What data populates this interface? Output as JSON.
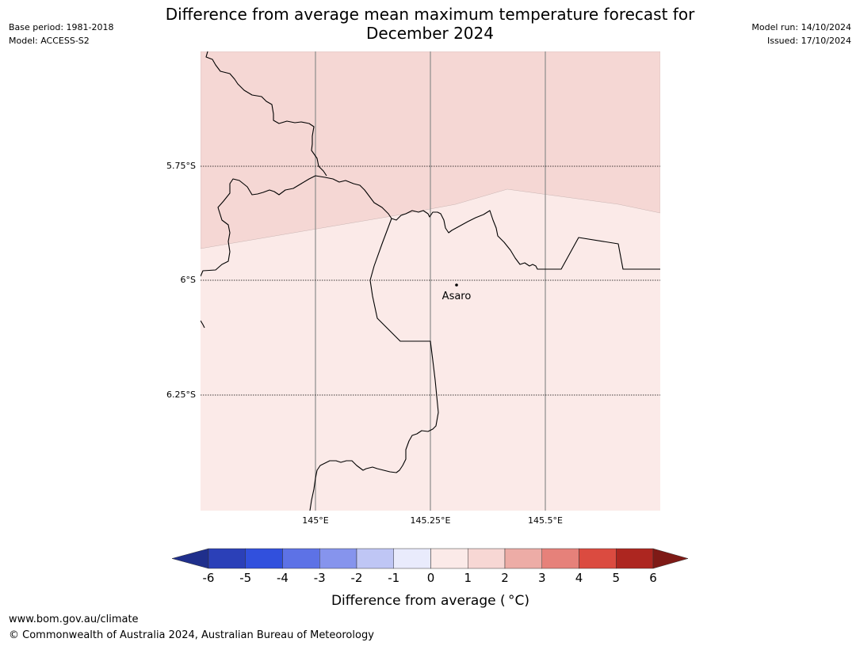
{
  "title_line1": "Difference from average mean maximum temperature forecast for",
  "title_line2": "December 2024",
  "meta_left": {
    "base_period": "Base period: 1981-2018",
    "model": "Model: ACCESS-S2"
  },
  "meta_right": {
    "model_run": "Model run: 14/10/2024",
    "issued": "Issued: 17/10/2024"
  },
  "map": {
    "lat_labels": [
      "5.75°S",
      "6°S",
      "6.25°S"
    ],
    "lon_labels": [
      "145°E",
      "145.25°E",
      "145.5°E"
    ],
    "place": "Asaro",
    "fill_colors": {
      "upper_region": "#f5d7d4",
      "lower_region": "#fbeae8"
    }
  },
  "colorbar": {
    "label": "Difference from average ( °C)",
    "ticks": [
      "-6",
      "-5",
      "-4",
      "-3",
      "-2",
      "-1",
      "0",
      "1",
      "2",
      "3",
      "4",
      "5",
      "6"
    ],
    "colors": [
      "#1f2f8c",
      "#2b40b8",
      "#3150dd",
      "#5d72e6",
      "#8694ed",
      "#bfc6f5",
      "#e9ebfc",
      "#fbeae8",
      "#f7d7d4",
      "#edaca6",
      "#e6817a",
      "#db4b40",
      "#ad2620",
      "#7e1a16"
    ]
  },
  "footer": {
    "url": "www.bom.gov.au/climate",
    "copyright": "© Commonwealth of Australia 2024, Australian Bureau of Meteorology"
  }
}
